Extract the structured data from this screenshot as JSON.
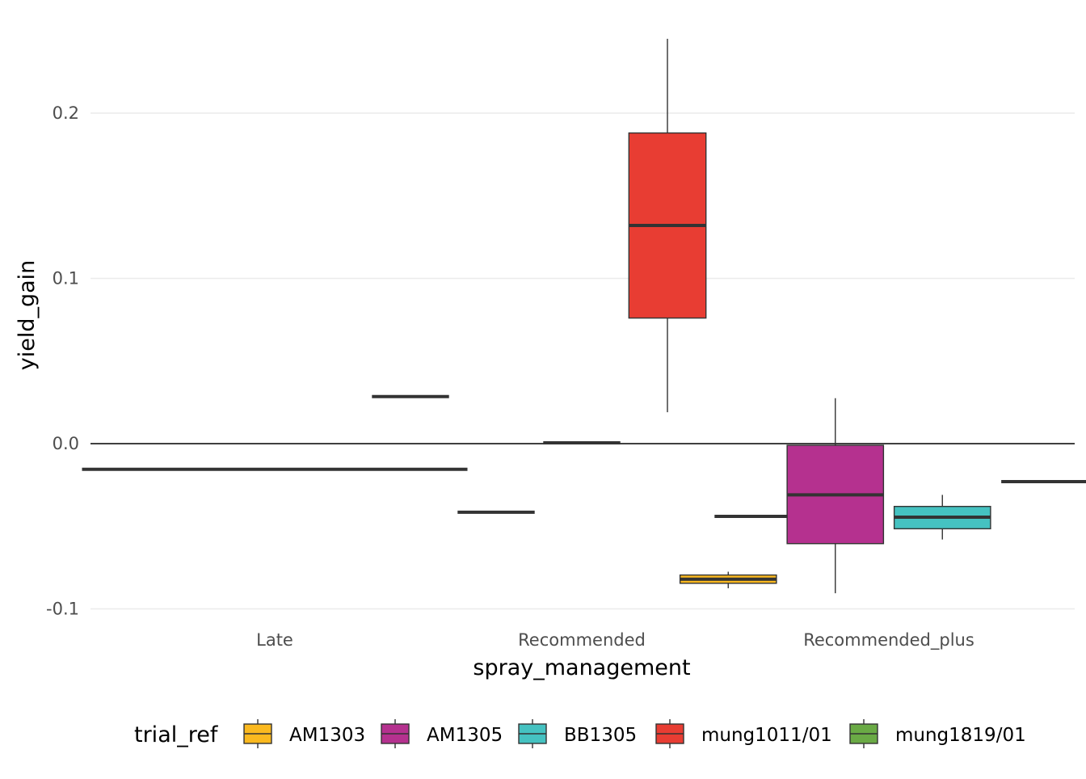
{
  "chart_data": {
    "type": "boxplot",
    "xlabel": "spray_management",
    "ylabel": "yield_gain",
    "categories": [
      "Late",
      "Recommended",
      "Recommended_plus"
    ],
    "ylim": [
      -0.1,
      0.245
    ],
    "yticks": [
      -0.1,
      0.0,
      0.1,
      0.2
    ],
    "ytick_labels": [
      "-0.1",
      "0.0",
      "0.1",
      "0.2"
    ],
    "reference_line": 0,
    "grid": "horizontal major",
    "legend": {
      "title": "trial_ref",
      "position": "bottom",
      "entries": [
        {
          "name": "AM1303",
          "color": "#FBB91F"
        },
        {
          "name": "AM1305",
          "color": "#B5318F"
        },
        {
          "name": "BB1305",
          "color": "#45C2C1"
        },
        {
          "name": "mung1011/01",
          "color": "#E83D33"
        },
        {
          "name": "mung1819/01",
          "color": "#6AAA45"
        }
      ]
    },
    "groups": [
      {
        "category": "Late",
        "boxes": [
          {
            "series": "mung1819/01",
            "slot": 0,
            "slots": 1,
            "min": -0.0155,
            "q1": -0.0155,
            "median": -0.0155,
            "q3": -0.0155,
            "max": -0.0155
          }
        ]
      },
      {
        "category": "Recommended",
        "boxes": [
          {
            "series": "AM1303",
            "slot": 0,
            "slots": 5,
            "min": 0.0285,
            "q1": 0.0285,
            "median": 0.0285,
            "q3": 0.0285,
            "max": 0.0285
          },
          {
            "series": "AM1305",
            "slot": 1,
            "slots": 5,
            "min": -0.0415,
            "q1": -0.0415,
            "median": -0.0415,
            "q3": -0.0415,
            "max": -0.0415
          },
          {
            "series": "BB1305",
            "slot": 2,
            "slots": 5,
            "min": 0.0005,
            "q1": 0.0005,
            "median": 0.0005,
            "q3": 0.0005,
            "max": 0.0005
          },
          {
            "series": "mung1011/01",
            "slot": 3,
            "slots": 5,
            "min": 0.019,
            "q1": 0.076,
            "median": 0.132,
            "q3": 0.188,
            "max": 0.245
          },
          {
            "series": "mung1819/01",
            "slot": 4,
            "slots": 5,
            "min": -0.044,
            "q1": -0.044,
            "median": -0.044,
            "q3": -0.044,
            "max": -0.044
          }
        ]
      },
      {
        "category": "Recommended_plus",
        "boxes": [
          {
            "series": "AM1303",
            "slot": 0,
            "slots": 4,
            "min": -0.0875,
            "q1": -0.0845,
            "median": -0.082,
            "q3": -0.0795,
            "max": -0.0775
          },
          {
            "series": "AM1305",
            "slot": 1,
            "slots": 4,
            "min": -0.0905,
            "q1": -0.0605,
            "median": -0.031,
            "q3": -0.001,
            "max": 0.0275
          },
          {
            "series": "BB1305",
            "slot": 2,
            "slots": 4,
            "min": -0.058,
            "q1": -0.0515,
            "median": -0.0445,
            "q3": -0.038,
            "max": -0.031
          },
          {
            "series": "mung1819/01",
            "slot": 3,
            "slots": 4,
            "min": -0.023,
            "q1": -0.023,
            "median": -0.023,
            "q3": -0.023,
            "max": -0.023
          }
        ]
      }
    ]
  }
}
